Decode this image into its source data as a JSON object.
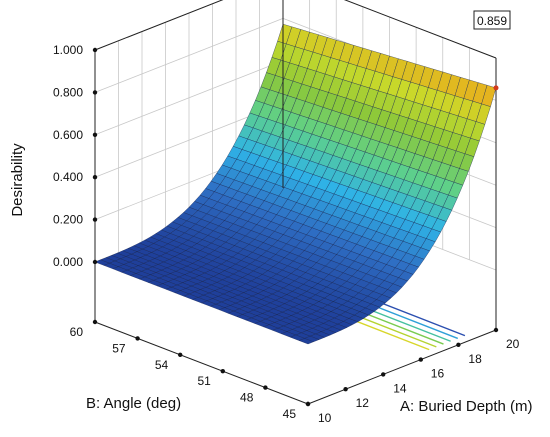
{
  "chart_data": {
    "type": "surface3d",
    "title": "",
    "zlabel": "Desirability",
    "xlabel": "A: Buried Depth (m)",
    "ylabel": "B: Angle (deg)",
    "x_range": [
      10,
      20
    ],
    "y_range": [
      45,
      60
    ],
    "z_range": [
      0,
      1
    ],
    "z_ticks": [
      "0.000",
      "0.200",
      "0.400",
      "0.600",
      "0.800",
      "1.000"
    ],
    "x_ticks": [
      "10",
      "12",
      "14",
      "16",
      "18",
      "20"
    ],
    "y_ticks": [
      "45",
      "48",
      "51",
      "54",
      "57",
      "60"
    ],
    "max_label": "0.859",
    "max_value": 0.859,
    "max_point": {
      "x": 20,
      "y": 45
    },
    "grid": true,
    "surface_colormap": [
      "#1f3f9a",
      "#2f6fc4",
      "#2fb3e6",
      "#5ed08a",
      "#8cc83a",
      "#c9d92a",
      "#f0a51a"
    ],
    "contour_lines": true
  }
}
